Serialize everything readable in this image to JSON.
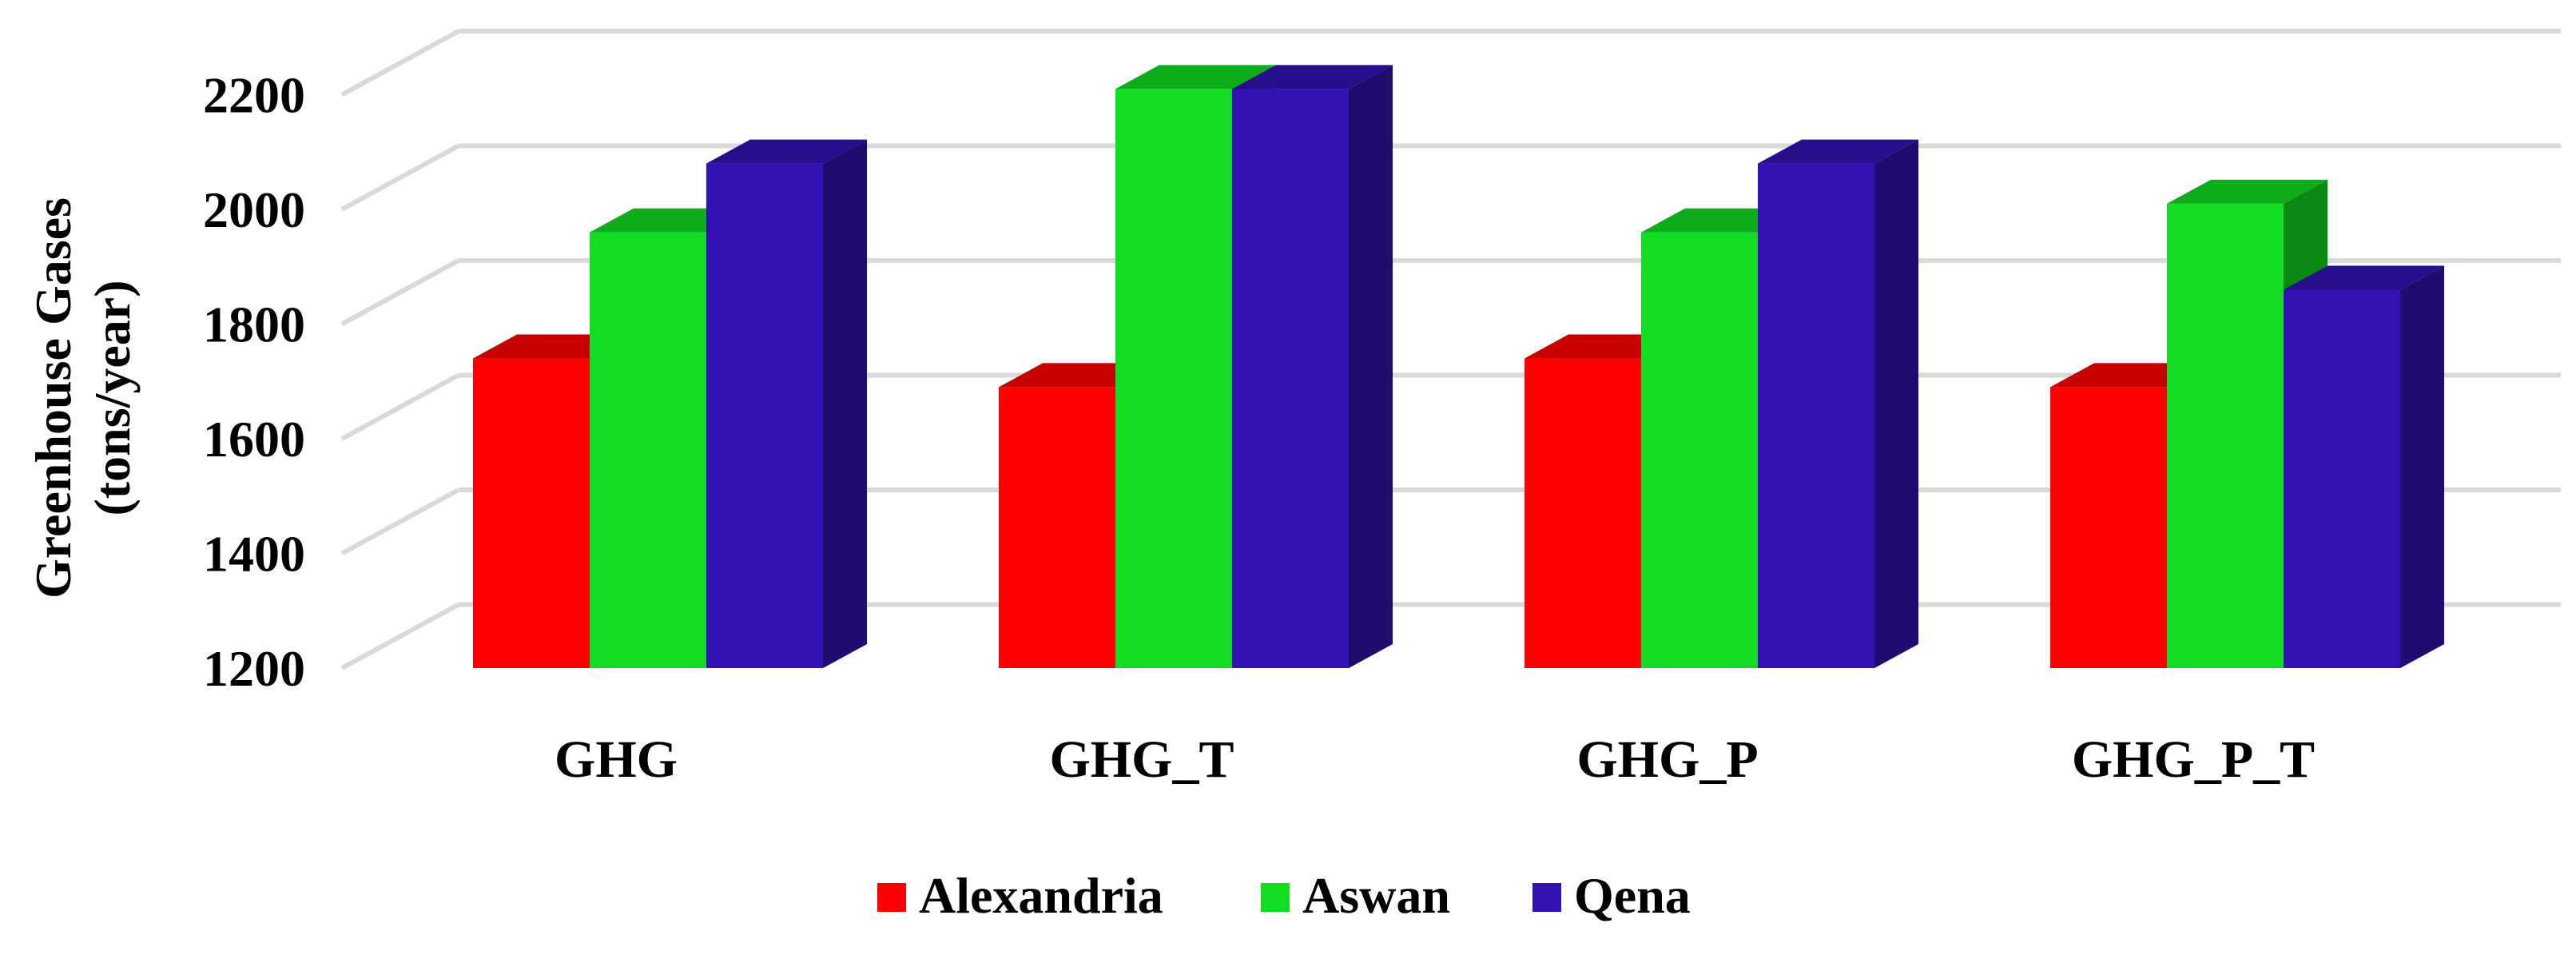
{
  "chart_data": {
    "type": "bar",
    "title": "",
    "xlabel": "",
    "ylabel": [
      "Greenhouse Gases",
      "(tons/year)"
    ],
    "categories": [
      "GHG",
      "GHG_T",
      "GHG_P",
      "GHG_P_T"
    ],
    "series": [
      {
        "name": "Alexandria",
        "values": [
          1740,
          1690,
          1740,
          1690
        ],
        "color": "#ff0000"
      },
      {
        "name": "Aswan",
        "values": [
          1960,
          2210,
          1960,
          2010
        ],
        "color": "#12dd22"
      },
      {
        "name": "Qena",
        "values": [
          2080,
          2210,
          2080,
          1860
        ],
        "color": "#3311b3"
      }
    ],
    "yticks": [
      1200,
      1400,
      1600,
      1800,
      2000,
      2200
    ],
    "ylim": [
      1200,
      2300
    ],
    "grid": true,
    "legend_position": "bottom",
    "style": "3d-clustered-column"
  }
}
